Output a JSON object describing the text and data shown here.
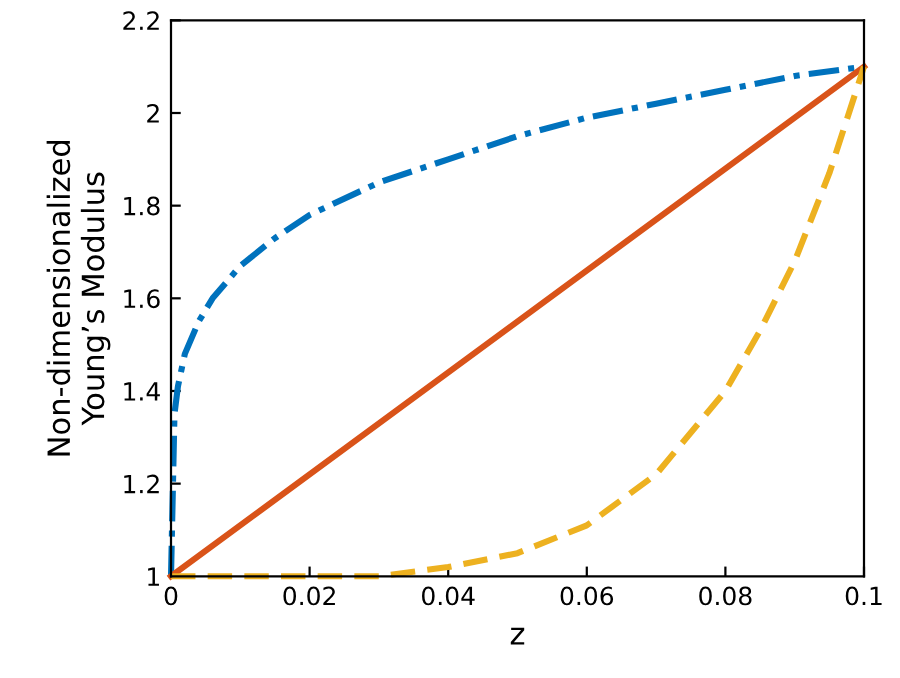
{
  "chart_data": {
    "type": "line",
    "xlabel": "z",
    "ylabel": "Non-dimensionalized\nYoung’s Modulus",
    "xlim": [
      0,
      0.1
    ],
    "ylim": [
      1,
      2.2
    ],
    "xticks": [
      0,
      0.02,
      0.04,
      0.06,
      0.08,
      0.1
    ],
    "yticks": [
      1,
      1.2,
      1.4,
      1.6,
      1.8,
      2,
      2.2
    ],
    "grid": false,
    "legend": false,
    "series": [
      {
        "color": "#0072bd",
        "line_style": "dashdot",
        "x": [
          0,
          0.0005,
          0.001,
          0.002,
          0.004,
          0.006,
          0.01,
          0.015,
          0.02,
          0.03,
          0.04,
          0.05,
          0.06,
          0.07,
          0.08,
          0.09,
          0.1
        ],
        "values": [
          1,
          1.35,
          1.41,
          1.48,
          1.55,
          1.6,
          1.67,
          1.73,
          1.78,
          1.85,
          1.9,
          1.95,
          1.99,
          2.02,
          2.05,
          2.08,
          2.1
        ]
      },
      {
        "color": "#d95319",
        "line_style": "solid",
        "x": [
          0,
          0.1
        ],
        "values": [
          1,
          2.1
        ]
      },
      {
        "color": "#edb120",
        "line_style": "dashed",
        "x": [
          0,
          0.02,
          0.03,
          0.04,
          0.05,
          0.06,
          0.07,
          0.08,
          0.085,
          0.09,
          0.095,
          0.1
        ],
        "values": [
          1,
          1,
          1,
          1.02,
          1.05,
          1.11,
          1.22,
          1.4,
          1.53,
          1.68,
          1.87,
          2.1
        ]
      }
    ]
  }
}
